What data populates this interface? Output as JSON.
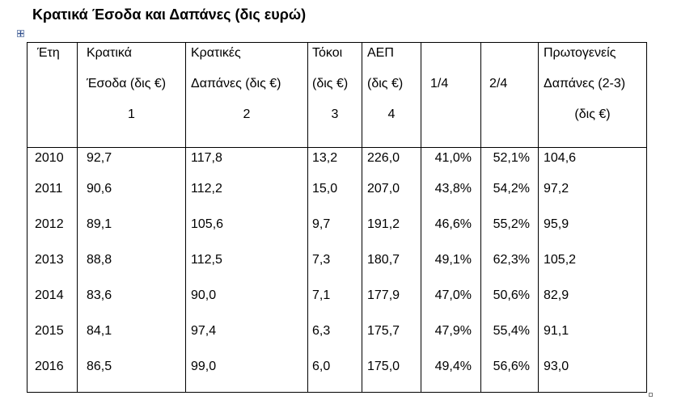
{
  "title": "Κρατικά Έσοδα και Δαπάνες (δις ευρώ)",
  "headers": {
    "year": [
      "Έτη"
    ],
    "revenue": [
      "Κρατικά",
      "Έσοδα (δις €)",
      "1"
    ],
    "expenditure": [
      "Κρατικές",
      "Δαπάνες (δις €)",
      "2"
    ],
    "interest": [
      "Τόκοι",
      "(δις €)",
      "3"
    ],
    "gdp": [
      "ΑΕΠ",
      "(δις €)",
      "4"
    ],
    "ratio_1_4": [
      "",
      "1/4",
      ""
    ],
    "ratio_2_4": [
      "",
      "2/4",
      ""
    ],
    "primary": [
      "Πρωτογενείς",
      "Δαπάνες (2-3)",
      "(δις €)"
    ]
  },
  "rows": [
    {
      "year": "2010",
      "revenue": "92,7",
      "expenditure": "117,8",
      "interest": "13,2",
      "gdp": "226,0",
      "ratio_1_4": "41,0%",
      "ratio_2_4": "52,1%",
      "primary": "104,6"
    },
    {
      "year": "2011",
      "revenue": "90,6",
      "expenditure": "112,2",
      "interest": "15,0",
      "gdp": "207,0",
      "ratio_1_4": "43,8%",
      "ratio_2_4": "54,2%",
      "primary": "97,2"
    },
    {
      "year": "2012",
      "revenue": "89,1",
      "expenditure": "105,6",
      "interest": "9,7",
      "gdp": "191,2",
      "ratio_1_4": "46,6%",
      "ratio_2_4": "55,2%",
      "primary": "95,9"
    },
    {
      "year": "2013",
      "revenue": "88,8",
      "expenditure": "112,5",
      "interest": "7,3",
      "gdp": "180,7",
      "ratio_1_4": "49,1%",
      "ratio_2_4": "62,3%",
      "primary": "105,2"
    },
    {
      "year": "2014",
      "revenue": "83,6",
      "expenditure": "90,0",
      "interest": "7,1",
      "gdp": "177,9",
      "ratio_1_4": "47,0%",
      "ratio_2_4": "50,6%",
      "primary": "82,9"
    },
    {
      "year": "2015",
      "revenue": "84,1",
      "expenditure": "97,4",
      "interest": "6,3",
      "gdp": "175,7",
      "ratio_1_4": "47,9%",
      "ratio_2_4": "55,4%",
      "primary": "91,1"
    },
    {
      "year": "2016",
      "revenue": "86,5",
      "expenditure": "99,0",
      "interest": "6,0",
      "gdp": "175,0",
      "ratio_1_4": "49,4%",
      "ratio_2_4": "56,6%",
      "primary": "93,0"
    }
  ],
  "icons": {
    "move_handle": "table-move-icon",
    "resize_handle": "table-resize-icon"
  }
}
